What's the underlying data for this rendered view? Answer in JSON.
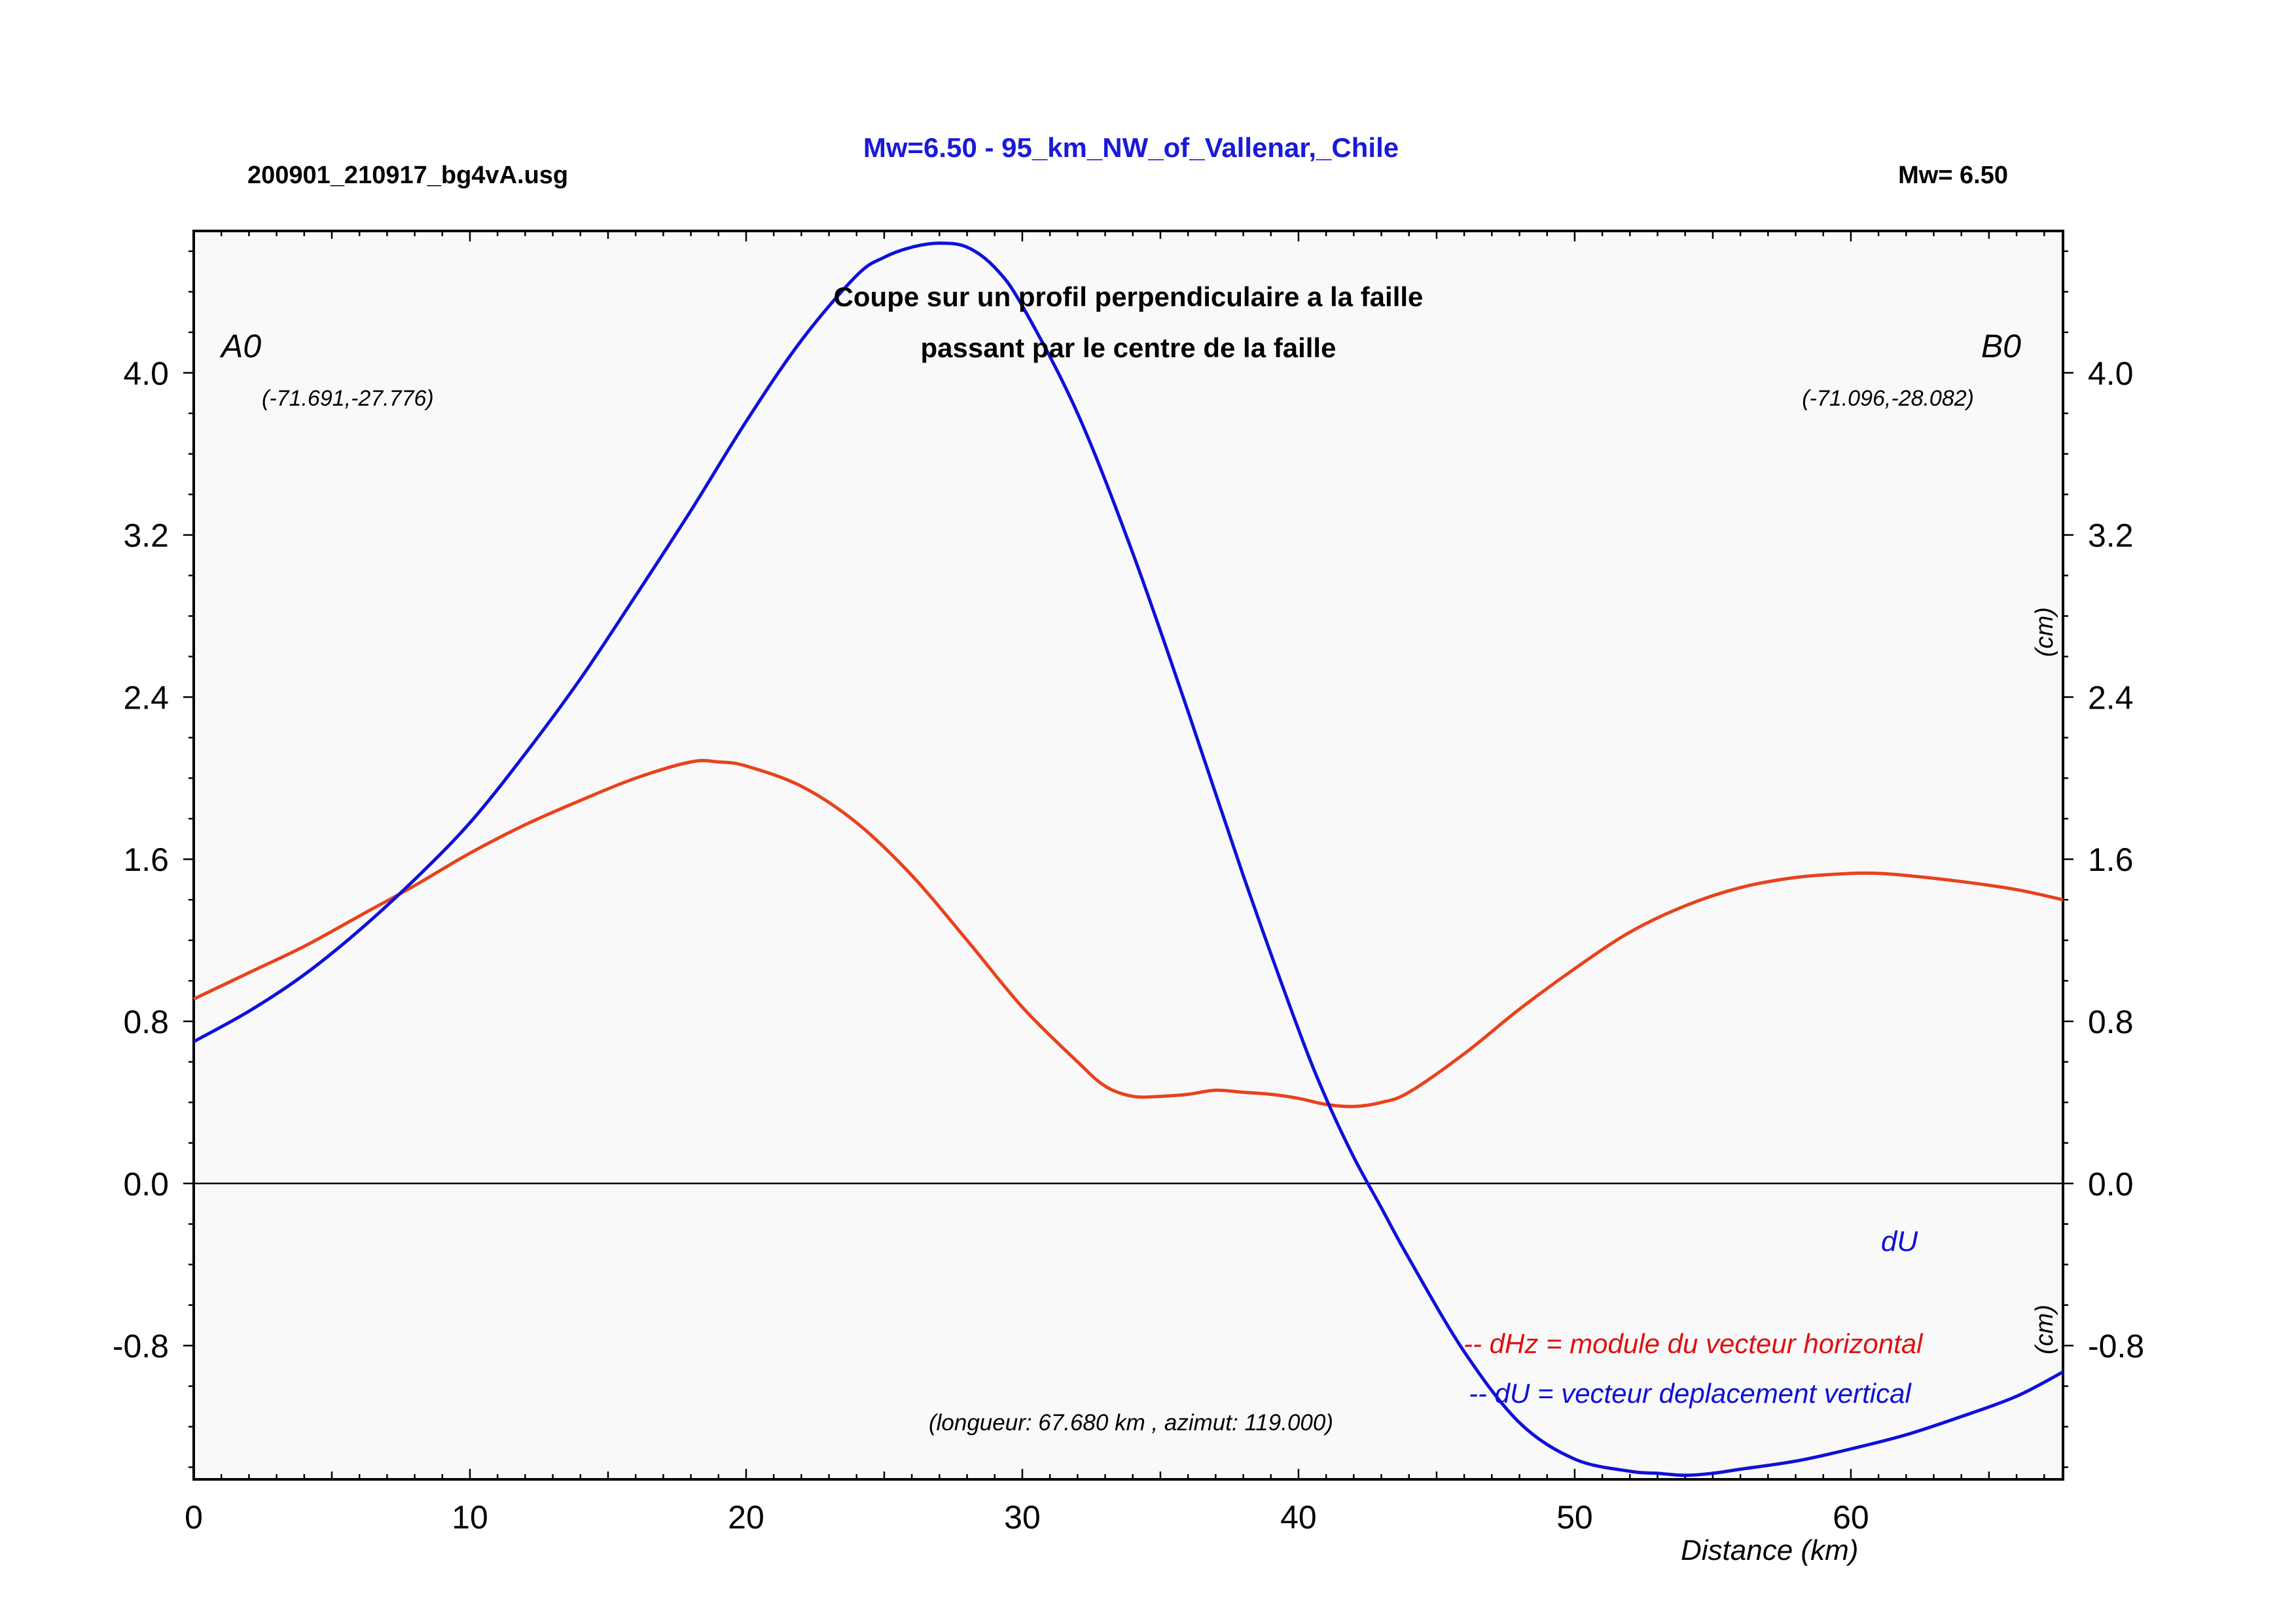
{
  "header": {
    "filename": "200901_210917_bg4vA.usg",
    "event_title": "Mw=6.50 - 95_km_NW_of_Vallenar,_Chile",
    "magnitude": "Mw= 6.50"
  },
  "plot": {
    "subtitle_line1": "Coupe sur un profil perpendiculaire a la faille",
    "subtitle_line2": "passant par le centre de la faille",
    "start_label": "A0",
    "start_coords": "(-71.691,-27.776)",
    "end_label": "B0",
    "end_coords": "(-71.096,-28.082)",
    "profile_info": "(longueur: 67.680 km , azimut: 119.000)",
    "unit_upper": "(cm)",
    "unit_lower": "(cm)",
    "du_tag": "dU",
    "legend_dhz": "-- dHz = module du vecteur horizontal",
    "legend_du": "-- dU =  vecteur deplacement vertical"
  },
  "colors": {
    "dhz": "#e8421c",
    "du": "#1010d8",
    "title": "#1a1ad8",
    "legend_dhz": "#e01010",
    "plot_bg": "#f9f9f9"
  },
  "chart_data": {
    "type": "line",
    "xlabel": "Distance (km)",
    "ylabel": "(cm)",
    "xlim": [
      0,
      67.68
    ],
    "ylim": [
      -1.46,
      4.7
    ],
    "x_ticks": [
      0,
      10,
      20,
      30,
      40,
      50,
      60
    ],
    "y_ticks": [
      -0.8,
      0.0,
      0.8,
      1.6,
      2.4,
      3.2,
      4.0
    ],
    "x_tick_labels": [
      "0",
      "10",
      "20",
      "30",
      "40",
      "50",
      "60"
    ],
    "y_tick_labels": [
      "-0.8",
      "0.0",
      "0.8",
      "1.6",
      "2.4",
      "3.2",
      "4.0"
    ],
    "zero_line": true,
    "grid": false,
    "series": [
      {
        "name": "dHz",
        "x": [
          0,
          2,
          4,
          6,
          8,
          10,
          12,
          14,
          16,
          18,
          19,
          20,
          22,
          24,
          26,
          28,
          30,
          32,
          33,
          34,
          35,
          36,
          37,
          38,
          39,
          40,
          41,
          42,
          43,
          44,
          46,
          48,
          50,
          52,
          54,
          56,
          58,
          60,
          61,
          62,
          64,
          66,
          67.68
        ],
        "y": [
          0.91,
          1.04,
          1.17,
          1.32,
          1.47,
          1.63,
          1.77,
          1.89,
          2.0,
          2.08,
          2.08,
          2.06,
          1.96,
          1.78,
          1.52,
          1.2,
          0.87,
          0.6,
          0.48,
          0.43,
          0.43,
          0.44,
          0.46,
          0.45,
          0.44,
          0.42,
          0.39,
          0.38,
          0.4,
          0.45,
          0.64,
          0.86,
          1.06,
          1.24,
          1.37,
          1.46,
          1.51,
          1.53,
          1.53,
          1.52,
          1.49,
          1.45,
          1.4
        ]
      },
      {
        "name": "dU",
        "x": [
          0,
          2,
          4,
          6,
          8,
          10,
          12,
          14,
          16,
          18,
          20,
          22,
          24,
          25,
          26,
          27,
          28,
          29,
          30,
          32,
          34,
          36,
          38,
          40,
          41,
          42,
          43,
          44,
          46,
          48,
          50,
          52,
          53,
          54,
          55,
          56,
          58,
          60,
          62,
          64,
          66,
          67.68
        ],
        "y": [
          0.7,
          0.85,
          1.03,
          1.25,
          1.5,
          1.78,
          2.12,
          2.49,
          2.9,
          3.32,
          3.76,
          4.16,
          4.48,
          4.57,
          4.62,
          4.64,
          4.62,
          4.52,
          4.33,
          3.8,
          3.11,
          2.33,
          1.52,
          0.76,
          0.42,
          0.13,
          -0.12,
          -0.37,
          -0.83,
          -1.18,
          -1.36,
          -1.42,
          -1.43,
          -1.44,
          -1.43,
          -1.41,
          -1.37,
          -1.31,
          -1.24,
          -1.15,
          -1.05,
          -0.93
        ]
      }
    ]
  }
}
